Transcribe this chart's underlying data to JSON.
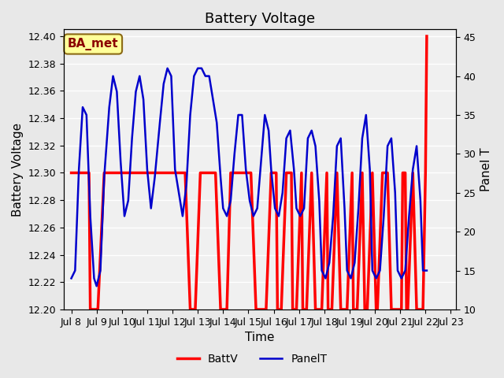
{
  "title": "Battery Voltage",
  "xlabel": "Time",
  "ylabel_left": "Battery Voltage",
  "ylabel_right": "Panel T",
  "annotation_text": "BA_met",
  "annotation_facecolor": "#FFFF99",
  "annotation_edgecolor": "#8B6914",
  "annotation_textcolor": "#8B0000",
  "ylim_left": [
    12.2,
    12.405
  ],
  "ylim_right": [
    10,
    46
  ],
  "yticks_left": [
    12.2,
    12.22,
    12.24,
    12.26,
    12.28,
    12.3,
    12.32,
    12.34,
    12.36,
    12.38,
    12.4
  ],
  "yticks_right": [
    10,
    15,
    20,
    25,
    30,
    35,
    40,
    45
  ],
  "battv_color": "#FF0000",
  "panelt_color": "#0000CC",
  "background_color": "#E8E8E8",
  "plot_bg_color": "#F0F0F0",
  "grid_color": "#FFFFFF",
  "title_fontsize": 13,
  "axis_label_fontsize": 11,
  "tick_fontsize": 9,
  "legend_fontsize": 10,
  "battv_linewidth": 2.5,
  "panelt_linewidth": 1.8,
  "battv_x": [
    8.0,
    8.3,
    8.5,
    8.7,
    8.75,
    8.8,
    9.0,
    9.05,
    9.3,
    9.5,
    9.7,
    9.9,
    10.1,
    10.3,
    10.5,
    10.7,
    10.9,
    11.1,
    11.3,
    11.5,
    11.7,
    11.9,
    12.1,
    12.3,
    12.5,
    12.7,
    12.75,
    12.9,
    13.1,
    13.3,
    13.5,
    13.7,
    13.9,
    14.1,
    14.15,
    14.3,
    14.5,
    14.7,
    14.9,
    15.1,
    15.3,
    15.5,
    15.65,
    15.7,
    15.9,
    16.1,
    16.15,
    16.3,
    16.5,
    16.7,
    16.75,
    16.9,
    17.1,
    17.15,
    17.3,
    17.5,
    17.65,
    17.9,
    18.1,
    18.15,
    18.3,
    18.5,
    18.65,
    18.9,
    19.1,
    19.15,
    19.3,
    19.5,
    19.6,
    19.7,
    19.9,
    20.05,
    20.1,
    20.3,
    20.5,
    20.65,
    20.9,
    21.05,
    21.1,
    21.2,
    21.25,
    21.3,
    21.5,
    21.65,
    21.9,
    22.0,
    22.05
  ],
  "battv_y": [
    12.3,
    12.3,
    12.3,
    12.3,
    12.2,
    12.2,
    12.2,
    12.2,
    12.3,
    12.3,
    12.3,
    12.3,
    12.3,
    12.3,
    12.3,
    12.3,
    12.3,
    12.3,
    12.3,
    12.3,
    12.3,
    12.3,
    12.3,
    12.3,
    12.3,
    12.2,
    12.2,
    12.2,
    12.3,
    12.3,
    12.3,
    12.3,
    12.2,
    12.2,
    12.2,
    12.3,
    12.3,
    12.3,
    12.3,
    12.3,
    12.2,
    12.2,
    12.2,
    12.2,
    12.3,
    12.3,
    12.2,
    12.2,
    12.3,
    12.3,
    12.2,
    12.2,
    12.3,
    12.2,
    12.2,
    12.3,
    12.2,
    12.2,
    12.3,
    12.2,
    12.2,
    12.3,
    12.2,
    12.2,
    12.3,
    12.2,
    12.2,
    12.3,
    12.2,
    12.2,
    12.3,
    12.2,
    12.2,
    12.3,
    12.3,
    12.2,
    12.2,
    12.2,
    12.3,
    12.3,
    12.2,
    12.2,
    12.3,
    12.2,
    12.2,
    12.3,
    12.4
  ],
  "panelt_x": [
    8.0,
    8.15,
    8.3,
    8.45,
    8.6,
    8.75,
    8.9,
    9.0,
    9.15,
    9.3,
    9.5,
    9.65,
    9.8,
    9.95,
    10.1,
    10.25,
    10.4,
    10.55,
    10.7,
    10.85,
    11.0,
    11.15,
    11.3,
    11.5,
    11.65,
    11.8,
    11.95,
    12.1,
    12.25,
    12.4,
    12.55,
    12.7,
    12.85,
    13.0,
    13.15,
    13.3,
    13.45,
    13.6,
    13.75,
    13.9,
    14.0,
    14.15,
    14.3,
    14.45,
    14.6,
    14.75,
    14.9,
    15.05,
    15.2,
    15.35,
    15.5,
    15.65,
    15.8,
    15.9,
    16.05,
    16.2,
    16.35,
    16.5,
    16.65,
    16.8,
    16.9,
    17.05,
    17.2,
    17.35,
    17.5,
    17.65,
    17.8,
    17.9,
    18.05,
    18.2,
    18.35,
    18.5,
    18.65,
    18.8,
    18.9,
    19.05,
    19.2,
    19.35,
    19.5,
    19.65,
    19.8,
    19.9,
    20.05,
    20.2,
    20.35,
    20.5,
    20.65,
    20.8,
    20.9,
    21.05,
    21.2,
    21.35,
    21.5,
    21.65,
    21.8,
    21.9,
    22.05
  ],
  "panelt_y": [
    14,
    15,
    28,
    36,
    35,
    22,
    14,
    13,
    15,
    27,
    36,
    40,
    38,
    29,
    22,
    24,
    32,
    38,
    40,
    37,
    28,
    23,
    27,
    34,
    39,
    41,
    40,
    28,
    25,
    22,
    26,
    35,
    40,
    41,
    41,
    40,
    40,
    37,
    34,
    27,
    23,
    22,
    24,
    30,
    35,
    35,
    28,
    24,
    22,
    23,
    29,
    35,
    33,
    28,
    23,
    22,
    25,
    32,
    33,
    28,
    23,
    22,
    23,
    32,
    33,
    31,
    24,
    15,
    14,
    16,
    22,
    31,
    32,
    23,
    15,
    14,
    16,
    23,
    32,
    35,
    28,
    15,
    14,
    15,
    22,
    31,
    32,
    25,
    15,
    14,
    15,
    22,
    28,
    31,
    24,
    15,
    15
  ],
  "xtick_positions": [
    8,
    9,
    10,
    11,
    12,
    13,
    14,
    15,
    16,
    17,
    18,
    19,
    20,
    21,
    22,
    23
  ],
  "xtick_labels": [
    "Jul 8",
    "Jul 9",
    "Jul 10",
    "Jul 11",
    "Jul 12",
    "Jul 13",
    "Jul 14",
    "Jul 15",
    "Jul 16",
    "Jul 17",
    "Jul 18",
    "Jul 19",
    "Jul 20",
    "Jul 21",
    "Jul 22",
    "Jul 23"
  ]
}
